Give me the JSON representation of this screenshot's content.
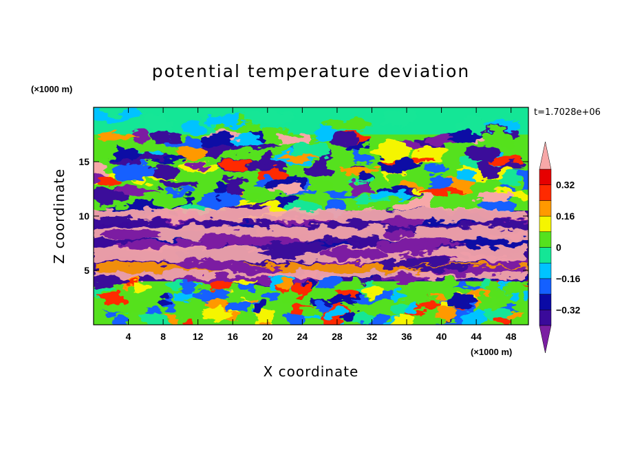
{
  "chart_data": {
    "type": "heatmap",
    "title": "potential temperature deviation",
    "xlabel": "X coordinate",
    "ylabel": "Z coordinate",
    "x_unit": "(×1000 m)",
    "y_unit": "(×1000 m)",
    "time_label": "t=1.7028e+06",
    "xlim": [
      0,
      50
    ],
    "ylim": [
      0,
      20
    ],
    "x_ticks": [
      4,
      8,
      12,
      16,
      20,
      24,
      28,
      32,
      36,
      40,
      44,
      48
    ],
    "x_tick_labels": [
      "4",
      "8",
      "12",
      "16",
      "20",
      "24",
      "28",
      "32",
      "36",
      "40",
      "44",
      "48"
    ],
    "y_ticks": [
      5,
      10,
      15
    ],
    "y_tick_labels": [
      "5",
      "10",
      "15"
    ],
    "colorbar": {
      "levels": [
        -0.4,
        -0.32,
        -0.24,
        -0.16,
        -0.08,
        0,
        0.08,
        0.16,
        0.24,
        0.32,
        0.4
      ],
      "labelled_levels": [
        -0.32,
        -0.16,
        0,
        0.16,
        0.32
      ],
      "labels": [
        "−0.32",
        "−0.16",
        "0",
        "0.16",
        "0.32"
      ],
      "colors": [
        "#7b1fa2",
        "#3a0a9a",
        "#0a0aa5",
        "#1460ff",
        "#00c3ff",
        "#14e696",
        "#55e11e",
        "#f5f500",
        "#ff9900",
        "#ff2a00",
        "#e60000",
        "#f7a8a8"
      ],
      "extend": "both"
    },
    "layers": [
      {
        "z_range": [
          17.5,
          20
        ],
        "approx_value": 0.02,
        "description": ""
      },
      {
        "z_range": [
          4,
          10.5
        ],
        "approx_value": 0.4
      },
      {
        "z_range": [
          0,
          4
        ],
        "approx_value": 0.0
      }
    ]
  }
}
